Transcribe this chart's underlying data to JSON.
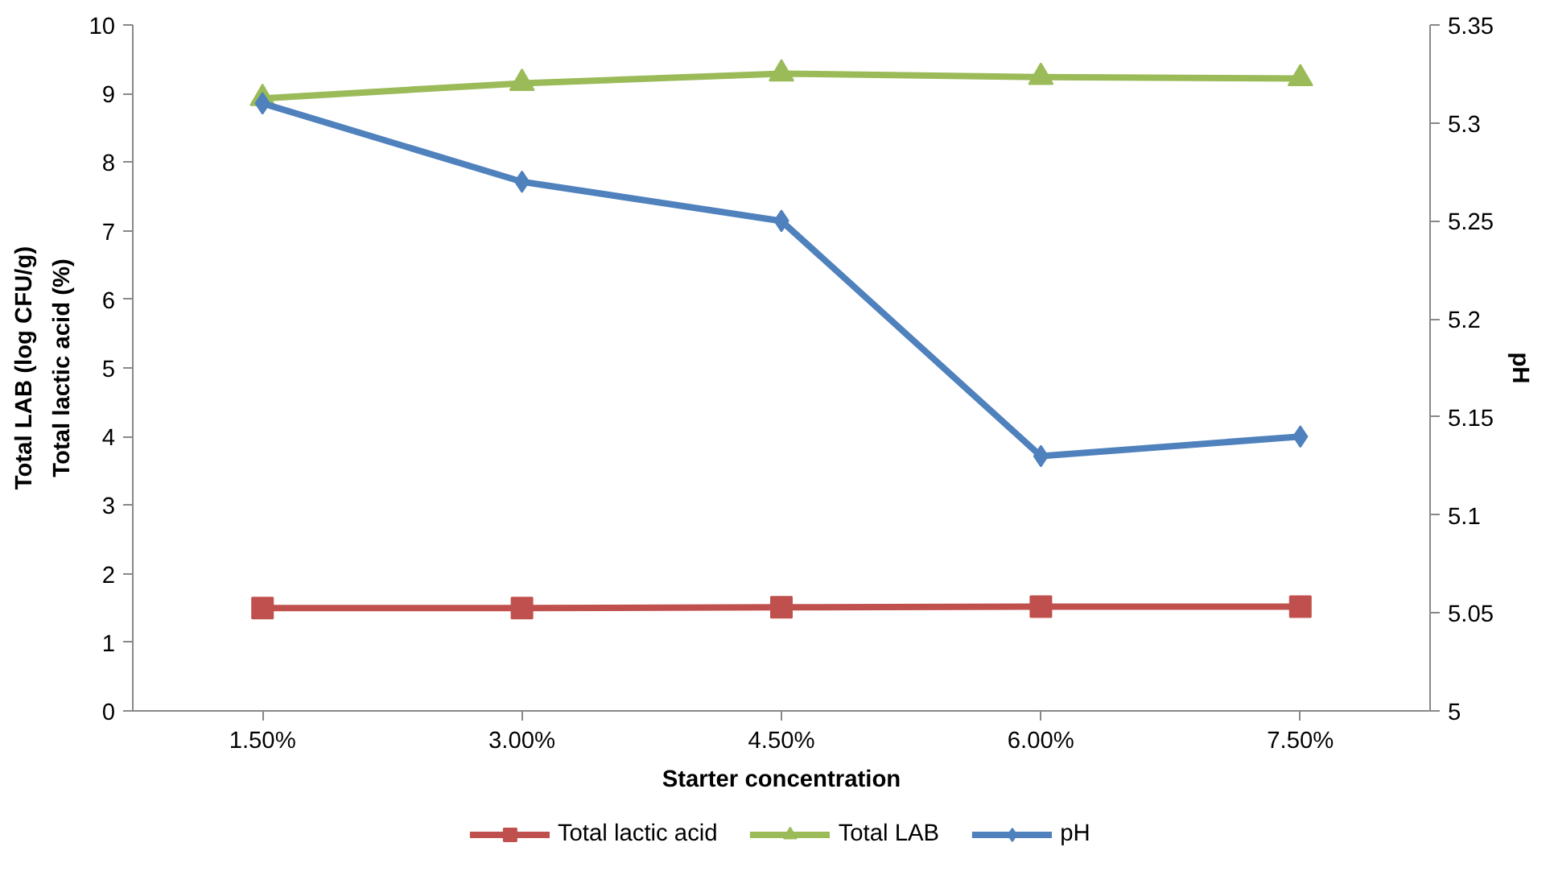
{
  "chart_data": {
    "type": "line",
    "xlabel": "Starter concentration",
    "ylabel": [
      "Total LAB (log CFU/g)",
      "Total lactic acid (%)"
    ],
    "y2label": "pH",
    "categories": [
      "1.50%",
      "3.00%",
      "4.50%",
      "6.00%",
      "7.50%"
    ],
    "ylim": [
      0,
      10
    ],
    "yticks": [
      0,
      1,
      2,
      3,
      4,
      5,
      6,
      7,
      8,
      9,
      10
    ],
    "y2lim": [
      5,
      5.35
    ],
    "y2ticks": [
      5,
      5.05,
      5.1,
      5.15,
      5.2,
      5.25,
      5.3,
      5.35
    ],
    "grid": false,
    "legend": "bottom",
    "line_style": "solid",
    "series": [
      {
        "name": "Total lactic acid",
        "color": "#c0504d",
        "marker": "square",
        "values": [
          1.5,
          1.5,
          1.51,
          1.52,
          1.52
        ]
      },
      {
        "name": "Total LAB",
        "color": "#9bbb59",
        "marker": "triangle",
        "values": [
          8.93,
          9.15,
          9.29,
          9.24,
          9.22
        ]
      },
      {
        "name": "pH",
        "color": "#4f81bd",
        "marker": "diamond",
        "axis": "y2",
        "values": [
          5.31,
          5.27,
          5.25,
          5.13,
          5.14
        ]
      }
    ]
  }
}
